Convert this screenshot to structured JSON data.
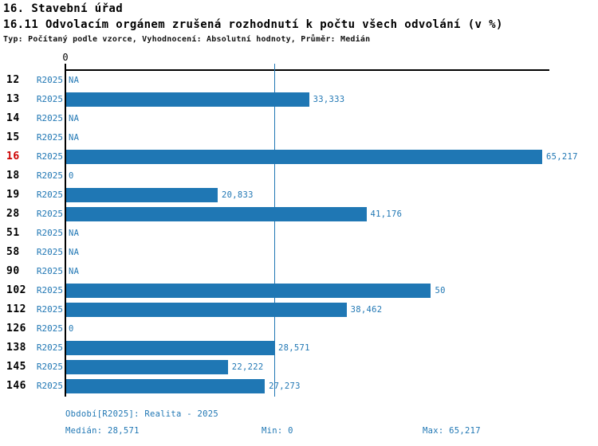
{
  "header": {
    "title": "16. Stavební úřad",
    "subtitle": "16.11 Odvolacím orgánem zrušená rozhodnutí k počtu všech odvolání (v %)",
    "meta": "Typ: Počítaný podle vzorce, Vyhodnocení: Absolutní hodnoty, Průměr: Medián"
  },
  "chart_data": {
    "type": "bar",
    "orientation": "horizontal",
    "title": "16.11 Odvolacím orgánem zrušená rozhodnutí k počtu všech odvolání (v %)",
    "series_label": "R2025",
    "axis": {
      "min": 0,
      "max": 65.217,
      "tick_labels": [
        "0"
      ],
      "zero_label": "0"
    },
    "median": 28.571,
    "rows": [
      {
        "id": "12",
        "period": "R2025",
        "value": null,
        "label": "NA",
        "highlight": false
      },
      {
        "id": "13",
        "period": "R2025",
        "value": 33.333,
        "label": "33,333",
        "highlight": false
      },
      {
        "id": "14",
        "period": "R2025",
        "value": null,
        "label": "NA",
        "highlight": false
      },
      {
        "id": "15",
        "period": "R2025",
        "value": null,
        "label": "NA",
        "highlight": false
      },
      {
        "id": "16",
        "period": "R2025",
        "value": 65.217,
        "label": "65,217",
        "highlight": true
      },
      {
        "id": "18",
        "period": "R2025",
        "value": 0,
        "label": "0",
        "highlight": false
      },
      {
        "id": "19",
        "period": "R2025",
        "value": 20.833,
        "label": "20,833",
        "highlight": false
      },
      {
        "id": "28",
        "period": "R2025",
        "value": 41.176,
        "label": "41,176",
        "highlight": false
      },
      {
        "id": "51",
        "period": "R2025",
        "value": null,
        "label": "NA",
        "highlight": false
      },
      {
        "id": "58",
        "period": "R2025",
        "value": null,
        "label": "NA",
        "highlight": false
      },
      {
        "id": "90",
        "period": "R2025",
        "value": null,
        "label": "NA",
        "highlight": false
      },
      {
        "id": "102",
        "period": "R2025",
        "value": 50,
        "label": "50",
        "highlight": false
      },
      {
        "id": "112",
        "period": "R2025",
        "value": 38.462,
        "label": "38,462",
        "highlight": false
      },
      {
        "id": "126",
        "period": "R2025",
        "value": 0,
        "label": "0",
        "highlight": false
      },
      {
        "id": "138",
        "period": "R2025",
        "value": 28.571,
        "label": "28,571",
        "highlight": false
      },
      {
        "id": "145",
        "period": "R2025",
        "value": 22.222,
        "label": "22,222",
        "highlight": false
      },
      {
        "id": "146",
        "period": "R2025",
        "value": 27.273,
        "label": "27,273",
        "highlight": false
      }
    ],
    "footer": {
      "period_line": "Období[R2025]: Realita - 2025",
      "median_label": "Medián: 28,571",
      "min_label": "Min: 0",
      "max_label": "Max: 65,217"
    }
  },
  "colors": {
    "bar": "#1f77b4",
    "blue_text": "#2077b4",
    "highlight_red": "#cc0000",
    "axis_black": "#000000"
  }
}
